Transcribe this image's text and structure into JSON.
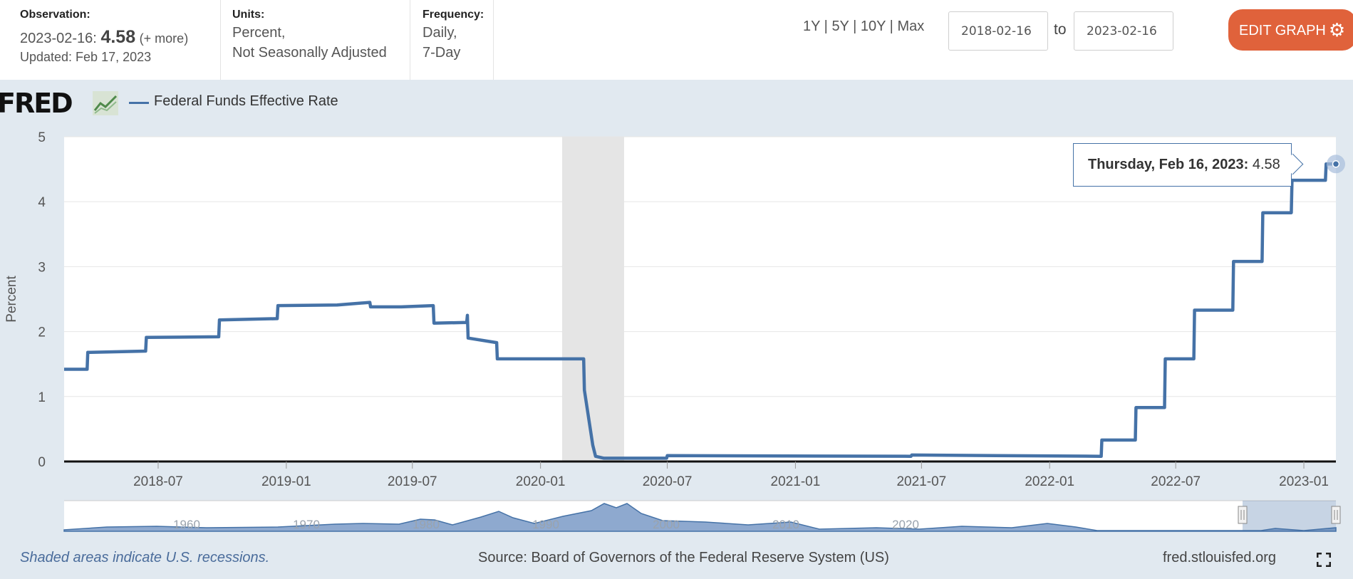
{
  "header": {
    "observation": {
      "heading": "Observation:",
      "date_prefix": "2023-02-16:",
      "value": "4.58",
      "more": "(+ more)",
      "updated": "Updated: Feb 17, 2023"
    },
    "units": {
      "heading": "Units:",
      "line1": "Percent,",
      "line2": "Not Seasonally Adjusted"
    },
    "frequency": {
      "heading": "Frequency:",
      "line1": "Daily,",
      "line2": "7-Day"
    },
    "range_links": [
      "1Y",
      "5Y",
      "10Y",
      "Max"
    ],
    "range_separator": "|",
    "start_date": "2018-02-16",
    "to_label": "to",
    "end_date": "2023-02-16",
    "edit_graph_label": "EDIT GRAPH",
    "edit_graph_icon": "gear-icon"
  },
  "legend": {
    "logo_text": "FRED",
    "series_label": "Federal Funds Effective Rate"
  },
  "tooltip": {
    "date": "Thursday, Feb 16, 2023:",
    "value": "4.58"
  },
  "footer": {
    "recession_note": "Shaded areas indicate U.S. recessions.",
    "source": "Source: Board of Governors of the Federal Reserve System (US)",
    "site": "fred.stlouisfed.org"
  },
  "colors": {
    "series": "#4572a7",
    "accent": "#e0623b",
    "recession": "#e5e5e5",
    "background": "#e1e9f0"
  },
  "chart_data": {
    "type": "line",
    "title": "",
    "xlabel": "",
    "ylabel": "Percent",
    "ylim": [
      0,
      5
    ],
    "xlim": [
      "2018-02-16",
      "2023-02-16"
    ],
    "y_ticks": [
      "0",
      "1",
      "2",
      "3",
      "4",
      "5"
    ],
    "x_ticks": [
      "2018-07",
      "2019-01",
      "2019-07",
      "2020-01",
      "2020-07",
      "2021-01",
      "2021-07",
      "2022-01",
      "2022-07",
      "2023-01"
    ],
    "grid": true,
    "recessions": [
      {
        "start": "2020-02-01",
        "end": "2020-04-30"
      }
    ],
    "series": [
      {
        "name": "Federal Funds Effective Rate",
        "x": [
          "2018-02-16",
          "2018-03-21",
          "2018-03-22",
          "2018-06-13",
          "2018-06-14",
          "2018-09-26",
          "2018-09-27",
          "2018-12-19",
          "2018-12-20",
          "2019-03-15",
          "2019-05-01",
          "2019-05-02",
          "2019-06-15",
          "2019-07-31",
          "2019-08-01",
          "2019-09-17",
          "2019-09-18",
          "2019-09-19",
          "2019-10-30",
          "2019-10-31",
          "2020-03-03",
          "2020-03-04",
          "2020-03-16",
          "2020-03-20",
          "2020-04-01",
          "2020-06-30",
          "2020-07-01",
          "2021-06-16",
          "2021-06-17",
          "2022-03-16",
          "2022-03-17",
          "2022-05-04",
          "2022-05-05",
          "2022-06-15",
          "2022-06-16",
          "2022-07-27",
          "2022-07-28",
          "2022-09-21",
          "2022-09-22",
          "2022-11-02",
          "2022-11-03",
          "2022-12-14",
          "2022-12-15",
          "2023-02-01",
          "2023-02-02",
          "2023-02-16"
        ],
        "y": [
          1.42,
          1.42,
          1.68,
          1.7,
          1.91,
          1.92,
          2.18,
          2.2,
          2.4,
          2.41,
          2.45,
          2.38,
          2.38,
          2.4,
          2.13,
          2.14,
          2.25,
          1.9,
          1.83,
          1.58,
          1.58,
          1.1,
          0.25,
          0.08,
          0.05,
          0.05,
          0.09,
          0.08,
          0.1,
          0.08,
          0.33,
          0.33,
          0.83,
          0.83,
          1.58,
          1.58,
          2.33,
          2.33,
          3.08,
          3.08,
          3.83,
          3.83,
          4.33,
          4.33,
          4.58,
          4.58
        ]
      }
    ],
    "navigator": {
      "labels": [
        "1960",
        "1970",
        "1980",
        "1990",
        "2000",
        "2010",
        "2020"
      ]
    }
  }
}
